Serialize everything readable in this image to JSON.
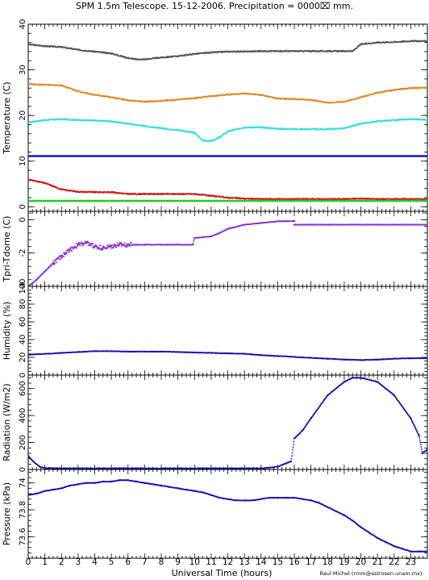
{
  "chart_data": {
    "title": "SPM 1.5m Telescope. 15-12-2006. Precipitation = 0000⌧ mm.",
    "xlabel": "Universal Time (hours)",
    "credit": "Raul Michel (rmm@astrosen.unam.mx)",
    "x_range": [
      0,
      24
    ],
    "x_ticks": [
      0,
      1,
      2,
      3,
      4,
      5,
      6,
      7,
      8,
      9,
      10,
      11,
      12,
      13,
      14,
      15,
      16,
      17,
      18,
      19,
      20,
      21,
      22,
      23
    ],
    "panels": [
      {
        "type": "scatter",
        "ylabel": "Temperature (C)",
        "ylim": [
          -1,
          40
        ],
        "y_ticks": [
          0,
          10,
          20,
          30,
          40
        ],
        "series": [
          {
            "color": "#555555",
            "style": "dots",
            "x": [
              0,
              1,
              2,
              3,
              4,
              5,
              6,
              6.5,
              7,
              8,
              9,
              10,
              11,
              12,
              13,
              14,
              15,
              16,
              17,
              18,
              19,
              19.5,
              20,
              21,
              22,
              23,
              24
            ],
            "y": [
              35.6,
              35.2,
              35,
              34.4,
              34,
              33.6,
              32.6,
              32.3,
              32.3,
              32.7,
              33,
              33.5,
              33.8,
              34,
              34,
              34.1,
              34.1,
              34.1,
              34.1,
              34.1,
              34.1,
              34.1,
              35.6,
              36,
              36.1,
              36.3,
              36.3
            ]
          },
          {
            "color": "#e08a2a",
            "style": "dots",
            "x": [
              0,
              1,
              2,
              3,
              4,
              5,
              6,
              7,
              8,
              9,
              10,
              11,
              12,
              13,
              14,
              15,
              16,
              17,
              18,
              19,
              20,
              21,
              22,
              23,
              24
            ],
            "y": [
              26.9,
              26.7,
              26.6,
              25.3,
              24.5,
              24,
              23.3,
              23,
              23.2,
              23.5,
              23.8,
              24.2,
              24.6,
              24.8,
              24.5,
              23.7,
              23.6,
              23.4,
              22.8,
              23,
              24,
              25,
              25.6,
              26,
              26.1
            ]
          },
          {
            "color": "#2ee0e0",
            "style": "dots",
            "x": [
              0,
              1,
              2,
              3,
              4,
              5,
              6,
              7,
              8,
              9,
              10,
              10.5,
              11,
              11.5,
              12,
              13,
              14,
              15,
              16,
              17,
              18,
              19,
              20,
              21,
              22,
              23,
              24
            ],
            "y": [
              18.5,
              19,
              19.2,
              19,
              18.9,
              18.7,
              18.2,
              17.7,
              17.2,
              16.8,
              16.2,
              14.5,
              14.4,
              15.2,
              16.5,
              17.4,
              17.4,
              17.1,
              17,
              17,
              17,
              17.2,
              18.2,
              18.7,
              19,
              19.2,
              19.1
            ]
          },
          {
            "color": "#1515d0",
            "style": "line",
            "x": [
              0,
              24
            ],
            "y": [
              11.1,
              11.1
            ]
          },
          {
            "color": "#d01a1a",
            "style": "dots",
            "x": [
              0,
              1,
              2,
              3,
              4,
              5,
              6,
              7,
              8,
              9,
              10,
              11,
              12,
              13,
              14,
              15,
              16,
              17,
              18,
              19,
              20,
              21,
              22,
              23,
              24
            ],
            "y": [
              6,
              5.2,
              3.8,
              3.3,
              3.2,
              3.2,
              2.8,
              2.8,
              2.8,
              2.8,
              2.8,
              2.4,
              2,
              1.8,
              1.7,
              1.7,
              1.7,
              1.7,
              1.7,
              1.7,
              1.8,
              1.7,
              1.7,
              1.7,
              1.7
            ]
          },
          {
            "color": "#1fd01f",
            "style": "line",
            "x": [
              0,
              24
            ],
            "y": [
              1.3,
              1.3
            ]
          }
        ]
      },
      {
        "type": "scatter",
        "ylabel": "Tpri-Tdome (C)",
        "ylim": [
          -4,
          0.5
        ],
        "y_ticks": [
          -4,
          -2,
          0
        ],
        "series": [
          {
            "color": "#8a2ad0",
            "style": "dots",
            "x": [
              0,
              0.5,
              1,
              1.5,
              2,
              2.5,
              3,
              3.5,
              4,
              4.5,
              5,
              5.5,
              6,
              6.5,
              7,
              8,
              9,
              9.9,
              10,
              10.5,
              11,
              11.5,
              12,
              13,
              14,
              15,
              16,
              16,
              17,
              18,
              19,
              20,
              21,
              22,
              23,
              24
            ],
            "y": [
              -4,
              -3.6,
              -3.1,
              -2.6,
              -2.2,
              -1.8,
              -1.5,
              -1.4,
              -1.6,
              -1.7,
              -1.6,
              -1.5,
              -1.5,
              -1.5,
              -1.5,
              -1.5,
              -1.5,
              -1.5,
              -1.1,
              -1.05,
              -1,
              -0.8,
              -0.55,
              -0.3,
              -0.2,
              -0.1,
              -0.08,
              -0.3,
              -0.3,
              -0.3,
              -0.3,
              -0.3,
              -0.3,
              -0.3,
              -0.3,
              -0.3
            ]
          }
        ]
      },
      {
        "type": "scatter",
        "ylabel": "Humidity (%)",
        "ylim": [
          0,
          100
        ],
        "y_ticks": [
          0,
          20,
          40,
          60,
          80,
          100
        ],
        "series": [
          {
            "color": "#1515b0",
            "style": "dots",
            "x": [
              0,
              1,
              2,
              3,
              4,
              5,
              6,
              7,
              8,
              9,
              10,
              11,
              12,
              13,
              14,
              15,
              16,
              17,
              18,
              19,
              20,
              21,
              22,
              23,
              24
            ],
            "y": [
              23,
              24,
              25,
              26,
              27,
              27,
              26.5,
              26.5,
              26.5,
              26,
              25.5,
              25,
              24.5,
              24,
              22.5,
              21.5,
              20.5,
              19.5,
              18.5,
              17.5,
              17,
              17.5,
              18.5,
              19,
              19
            ]
          }
        ]
      },
      {
        "type": "scatter",
        "ylabel": "Radiation (W/m2)",
        "ylim": [
          0,
          700
        ],
        "y_ticks": [
          0,
          200,
          400,
          600
        ],
        "series": [
          {
            "color": "#1515b0",
            "style": "dots",
            "x": [
              0,
              0.3,
              0.7,
              1,
              2,
              3,
              4,
              5,
              6,
              7,
              8,
              9,
              10,
              11,
              12,
              13,
              14,
              15,
              15.5,
              15.8,
              16,
              16.5,
              17,
              18,
              19,
              19.5,
              20,
              21,
              22,
              23,
              23.5,
              23.7,
              24
            ],
            "y": [
              100,
              60,
              20,
              10,
              8,
              8,
              8,
              8,
              8,
              8,
              8,
              8,
              8,
              8,
              8,
              8,
              8,
              20,
              45,
              60,
              230,
              290,
              380,
              550,
              650,
              680,
              680,
              650,
              550,
              380,
              250,
              120,
              150
            ]
          }
        ]
      },
      {
        "type": "scatter",
        "ylabel": "Pressure (kPa)",
        "ylim": [
          73.44,
          74.1
        ],
        "y_ticks": [
          73.6,
          73.8,
          74
        ],
        "series": [
          {
            "color": "#1515b0",
            "style": "dots",
            "x": [
              0,
              0.5,
              1,
              1.5,
              2,
              2.5,
              3,
              3.5,
              4,
              4.5,
              5,
              5.5,
              6,
              6.5,
              7,
              7.5,
              8,
              8.5,
              9,
              9.5,
              10,
              10.5,
              11,
              11.5,
              12,
              12.5,
              13,
              13.5,
              14,
              14.5,
              15,
              15.5,
              16,
              16.5,
              17,
              17.5,
              18,
              18.5,
              19,
              19.5,
              20,
              20.5,
              21,
              21.5,
              22,
              22.5,
              23,
              23.5,
              24
            ],
            "y": [
              73.91,
              73.92,
              73.94,
              73.95,
              73.96,
              73.98,
              73.99,
              74.0,
              74.0,
              74.01,
              74.01,
              74.02,
              74.02,
              74.01,
              74.0,
              73.99,
              73.98,
              73.97,
              73.96,
              73.95,
              73.94,
              73.93,
              73.91,
              73.89,
              73.88,
              73.87,
              73.87,
              73.87,
              73.88,
              73.89,
              73.89,
              73.89,
              73.89,
              73.88,
              73.87,
              73.85,
              73.82,
              73.79,
              73.76,
              73.72,
              73.67,
              73.63,
              73.59,
              73.56,
              73.53,
              73.51,
              73.49,
              73.49,
              73.49
            ]
          }
        ]
      }
    ]
  }
}
